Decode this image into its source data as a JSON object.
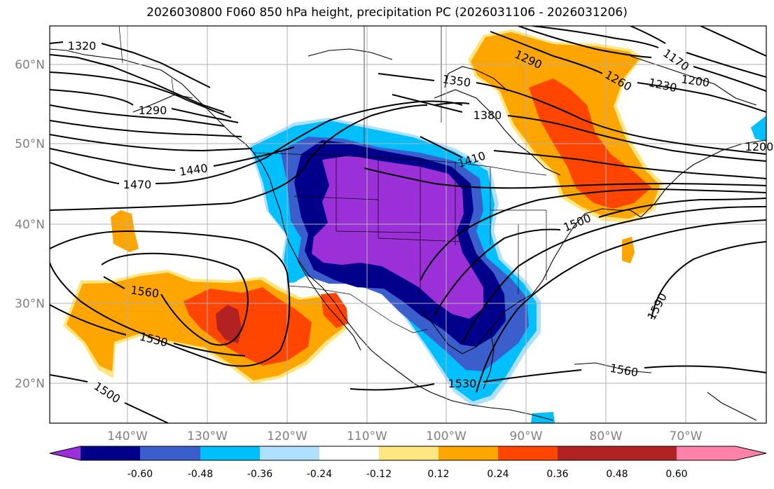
{
  "title": "2026030800 F060 850 hPa height, precipitation PC (2026031106 - 2026031206)",
  "lat_labels": [
    "60°N",
    "50°N",
    "40°N",
    "30°N",
    "20°N"
  ],
  "lon_labels": [
    "140°W",
    "130°W",
    "120°W",
    "110°W",
    "100°W",
    "90°W",
    "80°W",
    "70°W"
  ],
  "contour_labels": [
    "1320",
    "1290",
    "1440",
    "1470",
    "1560",
    "1530",
    "1500",
    "1290",
    "1350",
    "1380",
    "1410",
    "1260",
    "1230",
    "1200",
    "1170",
    "1500",
    "1590",
    "1560",
    "1530",
    "1200"
  ],
  "colorbar": {
    "ticks": [
      "-0.60",
      "-0.48",
      "-0.36",
      "-0.24",
      "-0.12",
      "0.12",
      "0.24",
      "0.36",
      "0.48",
      "0.60"
    ],
    "colors": [
      "#9b30d8",
      "#00008b",
      "#3a5fcd",
      "#00bfff",
      "#b0e0ff",
      "#ffffff",
      "#ffe680",
      "#ffa500",
      "#ff4500",
      "#b22222",
      "#ff82ab"
    ]
  },
  "palette": {
    "purple": "#9b30d8",
    "navy": "#00008b",
    "blue": "#3a5fcd",
    "cyan": "#00bfff",
    "lightblue": "#b0e0ff",
    "yellow": "#ffe680",
    "orange": "#ffa500",
    "redorange": "#ff4500",
    "darkred": "#b22222"
  }
}
